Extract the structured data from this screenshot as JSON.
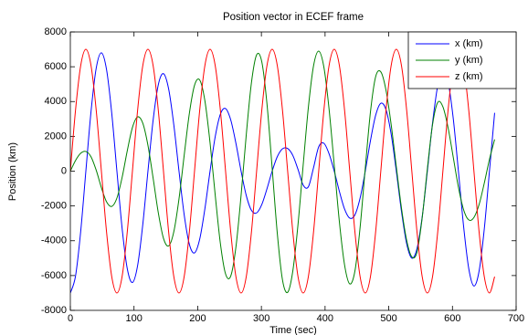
{
  "chart_data": {
    "type": "line",
    "title": "Position vector in ECEF frame",
    "x_label": "Time (sec)",
    "y_label": "Position (km)",
    "xlim": [
      0,
      700
    ],
    "xticks": [
      0,
      100,
      200,
      300,
      400,
      500,
      600,
      700
    ],
    "ylim": [
      -8000,
      8000
    ],
    "yticks": [
      -8000,
      -6000,
      -4000,
      -2000,
      0,
      2000,
      4000,
      6000,
      8000
    ],
    "grid": false,
    "legend_position": "top-right",
    "x": [
      0,
      8.125,
      16.25,
      24.375,
      32.5,
      40.625,
      48.75,
      56.875,
      65,
      73.125,
      81.25,
      89.375,
      97.5,
      105.625,
      113.75,
      121.875,
      130,
      138.125,
      146.25,
      154.375,
      162.5,
      170.625,
      178.75,
      186.875,
      195,
      203.125,
      211.25,
      219.375,
      227.5,
      235.625,
      243.75,
      251.875,
      260,
      268.125,
      276.25,
      284.375,
      292.5,
      300.625,
      308.75,
      316.875,
      325,
      333.125,
      341.25,
      349.375,
      357.5,
      365.625,
      373.75,
      381.875,
      390,
      398.125,
      406.25,
      414.375,
      422.5,
      430.625,
      438.75,
      446.875,
      455,
      463.125,
      471.25,
      479.375,
      487.5,
      495.625,
      503.75,
      511.875,
      520,
      528.125,
      536.25,
      544.375,
      552.5,
      560.625,
      568.75,
      576.875,
      585,
      593.125,
      601.25,
      609.375,
      617.5,
      625.625,
      633.75,
      641.875,
      650,
      658.125,
      666.25
    ],
    "series": [
      {
        "name": "x (km)",
        "color": "#0000ff",
        "values": [
          -7000,
          -6033,
          -3467,
          0,
          3433,
          5917,
          6800,
          5831,
          3333,
          0,
          -3267,
          -5600,
          -6400,
          -5427,
          -3067,
          0,
          2933,
          4965,
          5600,
          4720,
          2650,
          0,
          -2500,
          -4200,
          -4700,
          -3911,
          -2167,
          0,
          1983,
          3276,
          3600,
          2944,
          1600,
          0,
          -1400,
          -2252,
          -2400,
          -1920,
          -1017,
          0,
          833,
          1284,
          1300,
          900,
          100,
          -800,
          -900,
          200,
          1400,
          1600,
          1000,
          0,
          -1167,
          -2180,
          -2700,
          -2511,
          -1550,
          0,
          1750,
          3204,
          3900,
          3536,
          2133,
          0,
          -2317,
          -4171,
          -5000,
          -4445,
          -2633,
          0,
          2767,
          4907,
          5800,
          5138,
          3033,
          0,
          -3167,
          -5600,
          -6600,
          -5737,
          -3325,
          0,
          3350
        ]
      },
      {
        "name": "y (km)",
        "color": "#008000",
        "values": [
          0,
          611,
          1027,
          1132,
          822,
          54,
          -948,
          -1766,
          -2025,
          -1548,
          -370,
          1169,
          2508,
          3117,
          2756,
          1481,
          -404,
          -2392,
          -3860,
          -4295,
          -3476,
          -1590,
          904,
          3314,
          4933,
          5238,
          4052,
          1637,
          -1379,
          -4162,
          -5910,
          -6027,
          -4366,
          -1389,
          2093,
          5086,
          6681,
          6286,
          3877,
          193,
          -3585,
          -6253,
          -6962,
          -5731,
          -3065,
          354,
          3660,
          6052,
          6900,
          5981,
          3575,
          342,
          -2922,
          -5393,
          -6480,
          -5739,
          -3236,
          172,
          3399,
          5424,
          5707,
          4659,
          2687,
          244,
          -2133,
          -3980,
          -4927,
          -4648,
          -2685,
          139,
          2674,
          3947,
          3699,
          2502,
          802,
          -918,
          -2216,
          -2802,
          -2662,
          -1917,
          -690,
          679,
          1823
        ]
      },
      {
        "name": "z (km)",
        "color": "#ff0000",
        "values": [
          0,
          3500,
          6062,
          7000,
          6062,
          3500,
          0,
          -3500,
          -6062,
          -7000,
          -6062,
          -3500,
          0,
          3500,
          6062,
          7000,
          6062,
          3500,
          0,
          -3500,
          -6062,
          -7000,
          -6062,
          -3500,
          0,
          3500,
          6062,
          7000,
          6062,
          3500,
          0,
          -3500,
          -6062,
          -7000,
          -6062,
          -3500,
          0,
          3500,
          6062,
          7000,
          6062,
          3500,
          0,
          -3500,
          -6062,
          -7000,
          -6062,
          -3500,
          0,
          3500,
          6062,
          7000,
          6062,
          3500,
          0,
          -3500,
          -6062,
          -7000,
          -6062,
          -3500,
          0,
          3500,
          6062,
          7000,
          6062,
          3500,
          0,
          -3500,
          -6062,
          -7000,
          -6062,
          -3500,
          0,
          3500,
          6062,
          7000,
          6062,
          3500,
          0,
          -3500,
          -6062,
          -7000,
          -6062
        ]
      }
    ]
  }
}
